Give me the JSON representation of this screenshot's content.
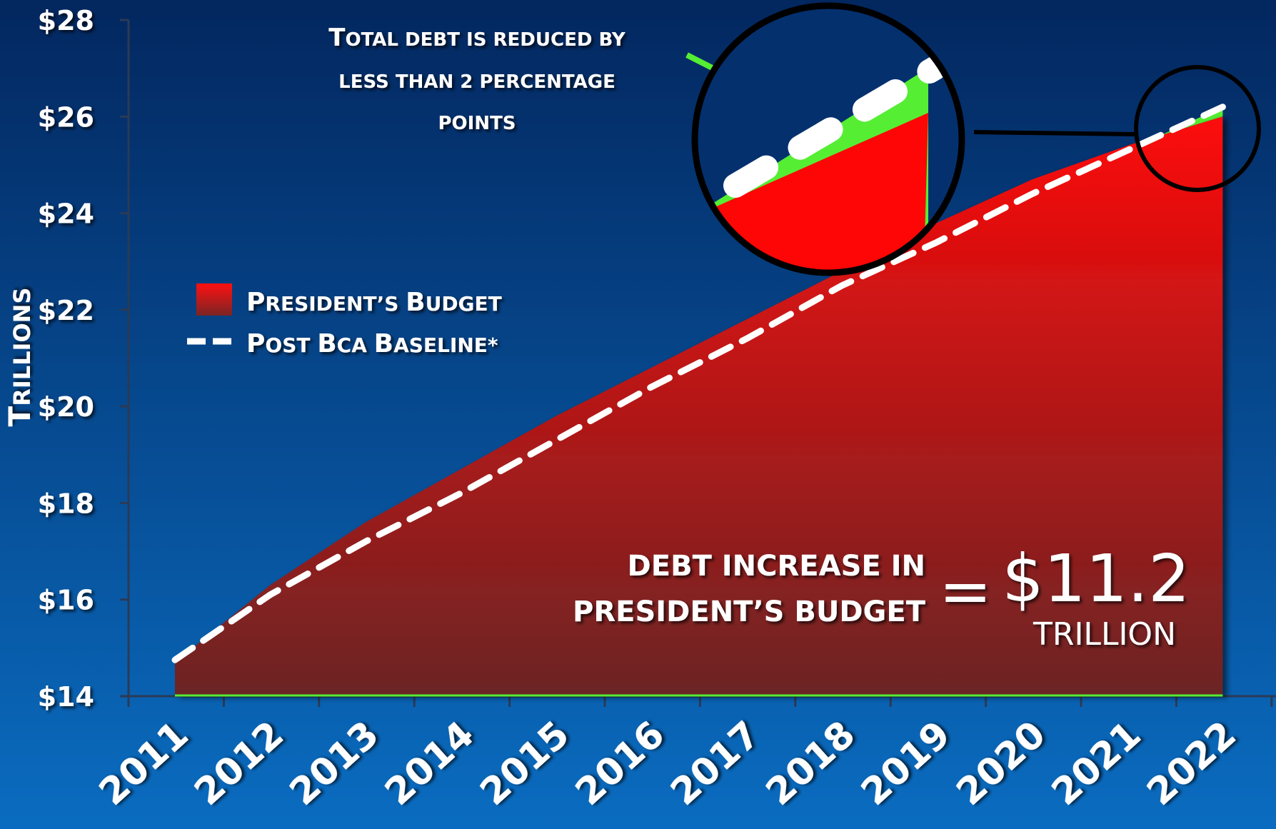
{
  "colors": {
    "background_top": "#03275f",
    "background_bottom": "#0a6cc0",
    "budget_fill_top": "#ff0a0a",
    "budget_fill_bottom": "#6b2525",
    "reduction": "#55ee33",
    "baseline": "#ffffff",
    "text": "#ffffff"
  },
  "labels": {
    "y_axis_title": "Trillions",
    "callout_line1": "Total debt is reduced by",
    "callout_line2": "less than 2 percentage",
    "callout_line3": "points",
    "debt_line1": "DEBT INCREASE IN",
    "debt_line2": "PRESIDENT’S BUDGET",
    "equals": "=",
    "debt_amount": "$11.2",
    "debt_unit": "TRILLION"
  },
  "chart_data": {
    "type": "area",
    "title": "",
    "xlabel": "",
    "ylabel": "Trillions",
    "x": [
      "2011",
      "2012",
      "2013",
      "2014",
      "2015",
      "2016",
      "2017",
      "2018",
      "2019",
      "2020",
      "2021",
      "2022"
    ],
    "ylim": [
      14,
      28
    ],
    "y_ticks": [
      14,
      16,
      18,
      20,
      22,
      24,
      26,
      28
    ],
    "y_tick_labels": [
      "$14",
      "$16",
      "$18",
      "$20",
      "$22",
      "$24",
      "$26",
      "$28"
    ],
    "grid": false,
    "legend_position": "left-middle",
    "series": [
      {
        "name": "President’s Budget",
        "style": "area",
        "values": [
          14.7,
          16.3,
          17.6,
          18.7,
          19.8,
          20.8,
          21.8,
          22.8,
          23.8,
          24.7,
          25.4,
          26.0
        ]
      },
      {
        "name": "Post BCA Baseline*",
        "style": "dashed-line",
        "values": [
          14.75,
          16.1,
          17.2,
          18.2,
          19.3,
          20.4,
          21.4,
          22.5,
          23.4,
          24.4,
          25.3,
          26.2
        ]
      }
    ]
  }
}
